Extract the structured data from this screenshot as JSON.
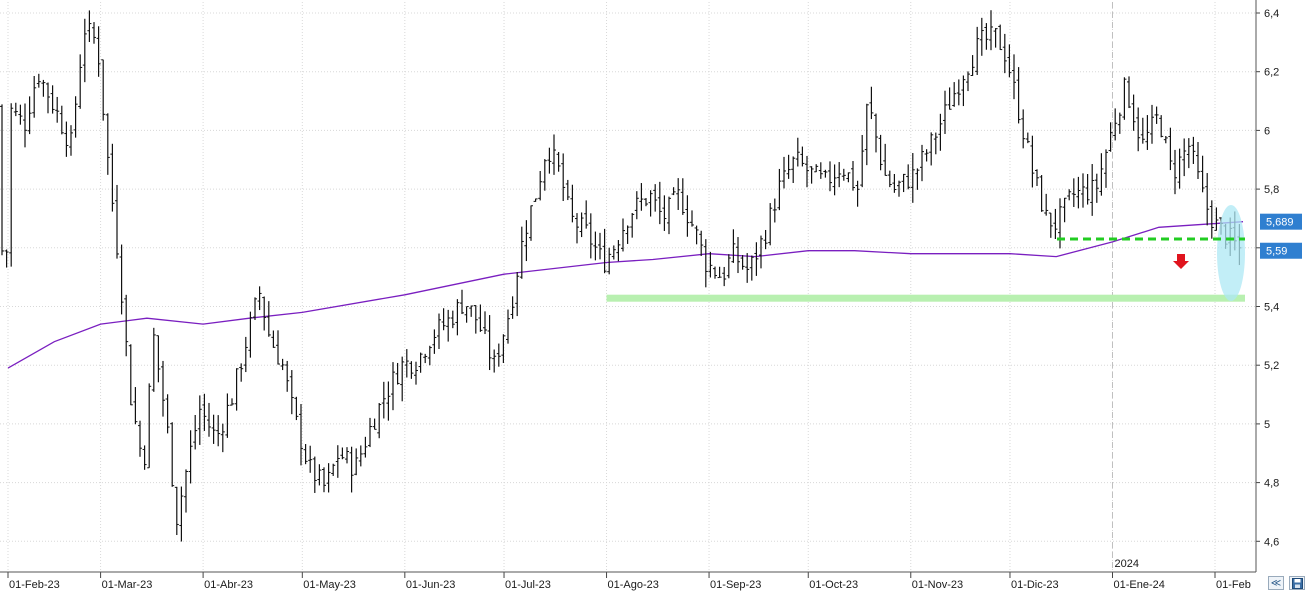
{
  "chart_data": {
    "type": "bar",
    "subtype": "ohlc-price-chart",
    "ylim": [
      4.55,
      6.45
    ],
    "y_ticks": [
      "6,4",
      "6,2",
      "6",
      "5,8",
      "5,6",
      "5,4",
      "5,2",
      "5",
      "4,8",
      "4,6"
    ],
    "y_tick_values": [
      6.4,
      6.2,
      6.0,
      5.8,
      5.6,
      5.4,
      5.2,
      5.0,
      4.8,
      4.6
    ],
    "x_ticks": [
      "01-Feb-23",
      "01-Mar-23",
      "01-Abr-23",
      "01-May-23",
      "01-Jun-23",
      "01-Jul-23",
      "01-Ago-23",
      "01-Sep-23",
      "01-Oct-23",
      "01-Nov-23",
      "01-Dic-23",
      "01-Ene-24",
      "01-Feb"
    ],
    "year_marker": "2024",
    "grid": true,
    "price_label": "5,59",
    "ma_label": "5,689",
    "colors": {
      "bars": "#111111",
      "moving_average": "#7a1fc0",
      "price_label_bg": "#2f7fd0",
      "ma_label_bg": "#2f7fd0",
      "support_band": "#b8f0b0",
      "resistance_dash": "#22cc22",
      "down_arrow": "#e0141e",
      "highlight_ellipse": "#aee8f4",
      "grid": "#d8d8d8"
    },
    "annotations": {
      "support_level": 5.43,
      "broken_support_level": 5.63,
      "down_arrow": "red",
      "highlight": "last-sessions"
    },
    "ma_points": [
      [
        "01-Feb-23",
        5.19
      ],
      [
        "15-Feb-23",
        5.28
      ],
      [
        "01-Mar-23",
        5.34
      ],
      [
        "15-Mar-23",
        5.36
      ],
      [
        "01-Abr-23",
        5.34
      ],
      [
        "15-Abr-23",
        5.36
      ],
      [
        "01-May-23",
        5.38
      ],
      [
        "01-Jun-23",
        5.44
      ],
      [
        "01-Jul-23",
        5.51
      ],
      [
        "01-Ago-23",
        5.55
      ],
      [
        "15-Ago-23",
        5.56
      ],
      [
        "01-Sep-23",
        5.58
      ],
      [
        "15-Sep-23",
        5.57
      ],
      [
        "01-Oct-23",
        5.59
      ],
      [
        "15-Oct-23",
        5.59
      ],
      [
        "01-Nov-23",
        5.58
      ],
      [
        "15-Nov-23",
        5.58
      ],
      [
        "01-Dic-23",
        5.58
      ],
      [
        "15-Dic-23",
        5.57
      ],
      [
        "01-Ene-24",
        5.62
      ],
      [
        "15-Ene-24",
        5.67
      ],
      [
        "01-Feb-24",
        5.689
      ]
    ],
    "price_path": [
      [
        "01-Feb-23",
        6.08
      ],
      [
        "06-Feb-23",
        6.02
      ],
      [
        "10-Feb-23",
        6.2
      ],
      [
        "15-Feb-23",
        6.08
      ],
      [
        "20-Feb-23",
        5.95
      ],
      [
        "24-Feb-23",
        6.35
      ],
      [
        "28-Feb-23",
        6.3
      ],
      [
        "03-Mar-23",
        5.92
      ],
      [
        "07-Mar-23",
        5.5
      ],
      [
        "10-Mar-23",
        5.1
      ],
      [
        "14-Mar-23",
        4.85
      ],
      [
        "17-Mar-23",
        5.3
      ],
      [
        "21-Mar-23",
        5.0
      ],
      [
        "24-Mar-23",
        4.68
      ],
      [
        "28-Mar-23",
        4.9
      ],
      [
        "31-Mar-23",
        5.05
      ],
      [
        "05-Abr-23",
        4.95
      ],
      [
        "10-Abr-23",
        5.1
      ],
      [
        "14-Abr-23",
        5.28
      ],
      [
        "18-Abr-23",
        5.45
      ],
      [
        "21-Abr-23",
        5.3
      ],
      [
        "25-Abr-23",
        5.2
      ],
      [
        "28-Abr-23",
        5.05
      ],
      [
        "03-May-23",
        4.85
      ],
      [
        "08-May-23",
        4.78
      ],
      [
        "12-May-23",
        4.9
      ],
      [
        "17-May-23",
        4.85
      ],
      [
        "22-May-23",
        5.0
      ],
      [
        "26-May-23",
        5.1
      ],
      [
        "31-May-23",
        5.2
      ],
      [
        "05-Jun-23",
        5.22
      ],
      [
        "09-Jun-23",
        5.3
      ],
      [
        "14-Jun-23",
        5.35
      ],
      [
        "19-Jun-23",
        5.42
      ],
      [
        "23-Jun-23",
        5.35
      ],
      [
        "28-Jun-23",
        5.2
      ],
      [
        "03-Jul-23",
        5.4
      ],
      [
        "07-Jul-23",
        5.65
      ],
      [
        "11-Jul-23",
        5.8
      ],
      [
        "14-Jul-23",
        5.95
      ],
      [
        "18-Jul-23",
        5.85
      ],
      [
        "21-Jul-23",
        5.7
      ],
      [
        "26-Jul-23",
        5.65
      ],
      [
        "31-Jul-23",
        5.55
      ],
      [
        "03-Ago-23",
        5.6
      ],
      [
        "08-Ago-23",
        5.72
      ],
      [
        "14-Ago-23",
        5.78
      ],
      [
        "18-Ago-23",
        5.7
      ],
      [
        "23-Ago-23",
        5.78
      ],
      [
        "28-Ago-23",
        5.65
      ],
      [
        "31-Ago-23",
        5.55
      ],
      [
        "05-Sep-23",
        5.5
      ],
      [
        "08-Sep-23",
        5.58
      ],
      [
        "13-Sep-23",
        5.52
      ],
      [
        "18-Sep-23",
        5.65
      ],
      [
        "22-Sep-23",
        5.8
      ],
      [
        "27-Sep-23",
        5.9
      ],
      [
        "02-Oct-23",
        5.85
      ],
      [
        "06-Oct-23",
        5.82
      ],
      [
        "11-Oct-23",
        5.88
      ],
      [
        "16-Oct-23",
        5.8
      ],
      [
        "19-Oct-23",
        6.1
      ],
      [
        "24-Oct-23",
        5.85
      ],
      [
        "27-Oct-23",
        5.8
      ],
      [
        "02-Nov-23",
        5.85
      ],
      [
        "07-Nov-23",
        5.95
      ],
      [
        "13-Nov-23",
        6.1
      ],
      [
        "17-Nov-23",
        6.2
      ],
      [
        "22-Nov-23",
        6.3
      ],
      [
        "27-Nov-23",
        6.32
      ],
      [
        "30-Nov-23",
        6.25
      ],
      [
        "04-Dic-23",
        6.05
      ],
      [
        "08-Dic-23",
        5.85
      ],
      [
        "12-Dic-23",
        5.7
      ],
      [
        "15-Dic-23",
        5.68
      ],
      [
        "20-Dic-23",
        5.78
      ],
      [
        "27-Dic-23",
        5.8
      ],
      [
        "02-Ene-24",
        6.05
      ],
      [
        "05-Ene-24",
        6.15
      ],
      [
        "10-Ene-24",
        5.95
      ],
      [
        "15-Ene-24",
        6.05
      ],
      [
        "19-Ene-24",
        5.85
      ],
      [
        "24-Ene-24",
        5.95
      ],
      [
        "29-Ene-24",
        5.75
      ],
      [
        "01-Feb-24",
        5.68
      ],
      [
        "05-Feb-24",
        5.59
      ]
    ]
  },
  "toolbar": {
    "fit_icon": "double-chevron-icon",
    "save_icon": "floppy-disk-icon"
  }
}
